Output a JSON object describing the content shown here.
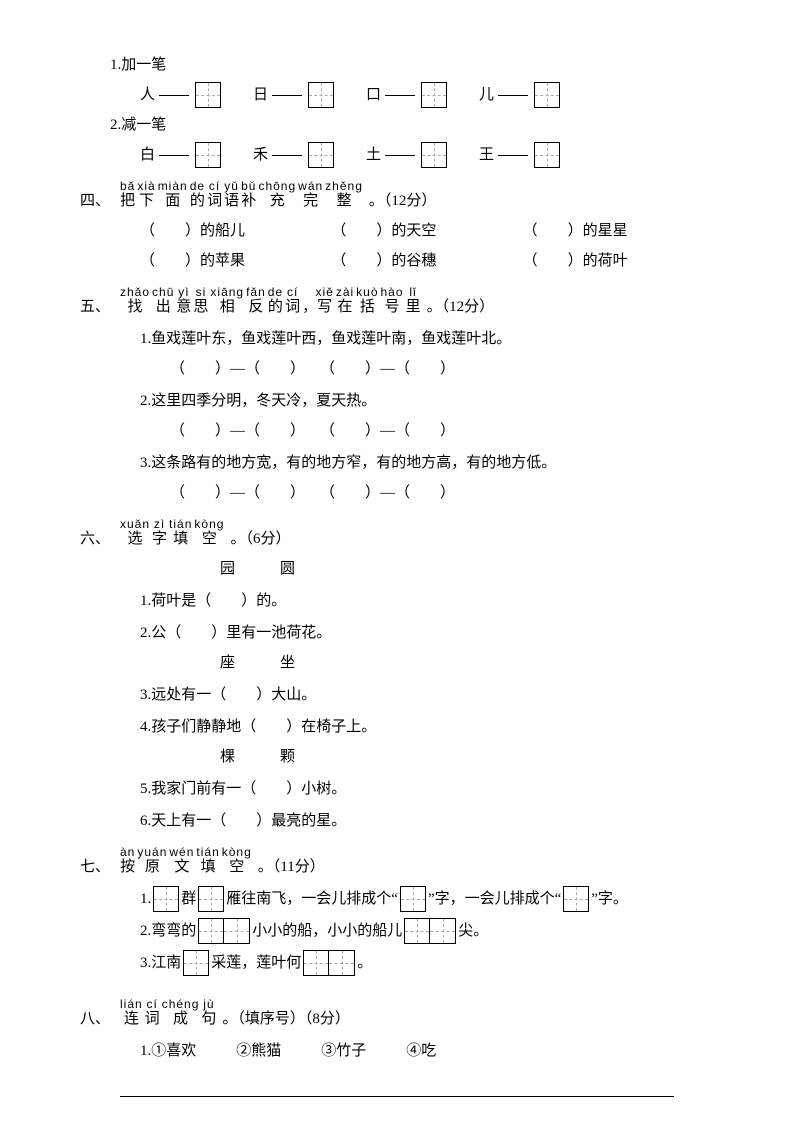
{
  "q1": {
    "add_label": "1.加一笔",
    "add_chars": [
      "人",
      "日",
      "口",
      "儿"
    ],
    "sub_label": "2.减一笔",
    "sub_chars": [
      "白",
      "禾",
      "土",
      "王"
    ]
  },
  "s4": {
    "num": "四、",
    "ruby": [
      [
        "把",
        "bǎ"
      ],
      [
        "下",
        "xià"
      ],
      [
        "面",
        "miàn"
      ],
      [
        "的",
        "de"
      ],
      [
        "词",
        "cí"
      ],
      [
        "语",
        "yǔ"
      ],
      [
        "补",
        "bǔ"
      ],
      [
        "充",
        "chōng"
      ],
      [
        "完",
        "wán"
      ],
      [
        "整",
        "zhěng"
      ]
    ],
    "tail": "。（12分）",
    "items": [
      [
        "（　　）的船儿",
        "（　　）的天空",
        "（　　）的星星"
      ],
      [
        "（　　）的苹果",
        "（　　）的谷穗",
        "（　　）的荷叶"
      ]
    ]
  },
  "s5": {
    "num": "五、",
    "ruby": [
      [
        "找",
        "zhǎo"
      ],
      [
        "出",
        "chū"
      ],
      [
        "意",
        "yì"
      ],
      [
        "思",
        "si"
      ],
      [
        "相",
        "xiāng"
      ],
      [
        "反",
        "fǎn"
      ],
      [
        "的",
        "de"
      ],
      [
        "词",
        "cí"
      ],
      [
        "，",
        ""
      ],
      [
        "写",
        "xiě"
      ],
      [
        "在",
        "zài"
      ],
      [
        "括",
        "kuò"
      ],
      [
        "号",
        "hào"
      ],
      [
        "里",
        "lǐ"
      ]
    ],
    "tail": "。（12分）",
    "lines": [
      "1.鱼戏莲叶东，鱼戏莲叶西，鱼戏莲叶南，鱼戏莲叶北。",
      "2.这里四季分明，冬天冷，夏天热。",
      "3.这条路有的地方宽，有的地方窄，有的地方高，有的地方低。"
    ],
    "pair": "（　　）—（　　）　　（　　）—（　　）"
  },
  "s6": {
    "num": "六、",
    "ruby": [
      [
        "选",
        "xuǎn"
      ],
      [
        "字",
        "zì"
      ],
      [
        "填",
        "tián"
      ],
      [
        "空",
        "kòng"
      ]
    ],
    "tail": "。（6分）",
    "groups": [
      {
        "opts": "园　　　圆",
        "items": [
          "1.荷叶是（　　）的。",
          "2.公（　　）里有一池荷花。"
        ]
      },
      {
        "opts": "座　　　坐",
        "items": [
          "3.远处有一（　　）大山。",
          "4.孩子们静静地（　　）在椅子上。"
        ]
      },
      {
        "opts": "棵　　　颗",
        "items": [
          "5.我家门前有一（　　）小树。",
          "6.天上有一（　　）最亮的星。"
        ]
      }
    ]
  },
  "s7": {
    "num": "七、",
    "ruby": [
      [
        "按",
        "àn"
      ],
      [
        "原",
        "yuán"
      ],
      [
        "文",
        "wén"
      ],
      [
        "填",
        "tián"
      ],
      [
        "空",
        "kòng"
      ]
    ],
    "tail": "。（11分）",
    "line1a": "群",
    "line1b": "雁往南飞，一会儿排成个“",
    "line1c": "”字，一会儿排成个“",
    "line1d": "”字。",
    "line2a": "2.弯弯的",
    "line2b": "小小的船，小小的船儿",
    "line2c": "尖。",
    "line3a": "3.江南",
    "line3b": "采莲，莲叶何",
    "line3c": "。"
  },
  "s8": {
    "num": "八、",
    "ruby": [
      [
        "连",
        "lián"
      ],
      [
        "词",
        "cí"
      ],
      [
        "成",
        "chéng"
      ],
      [
        "句",
        "jù"
      ]
    ],
    "tail": "。（填序号）（8分）",
    "items": [
      "①喜欢",
      "②熊猫",
      "③竹子",
      "④吃"
    ],
    "line_label": "1."
  }
}
